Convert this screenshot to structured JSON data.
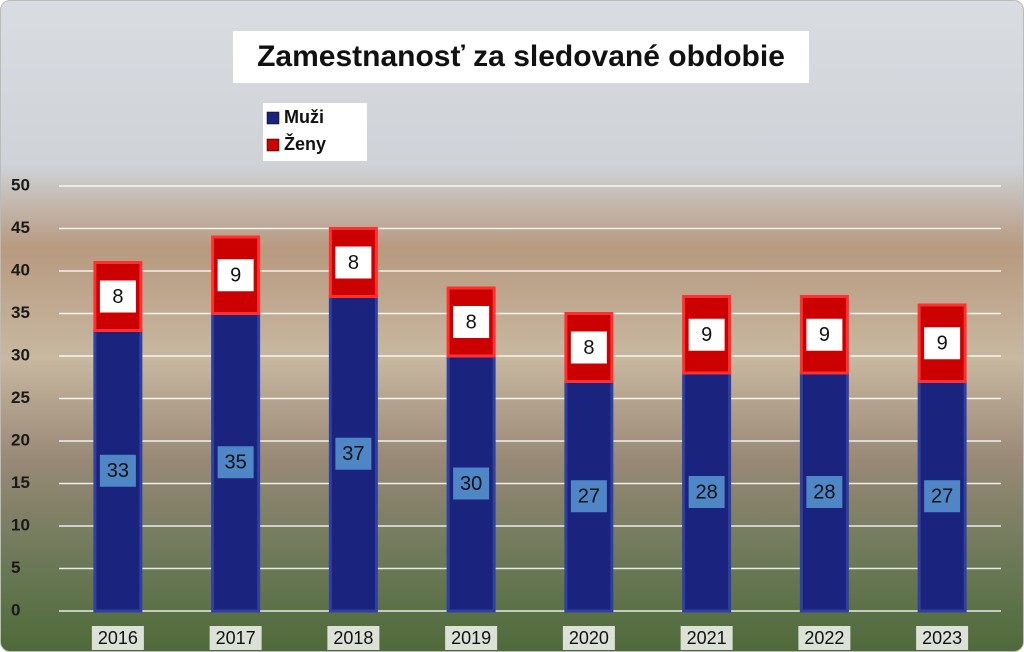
{
  "chart_data": {
    "type": "stacked-bar",
    "title": "Zamestnanosť za sledované obdobie",
    "categories": [
      "2016",
      "2017",
      "2018",
      "2019",
      "2020",
      "2021",
      "2022",
      "2023"
    ],
    "series": [
      {
        "name": "Muži",
        "color": "#1a237e",
        "values": [
          33,
          35,
          37,
          30,
          27,
          28,
          28,
          27
        ]
      },
      {
        "name": "Ženy",
        "color": "#cc0000",
        "values": [
          8,
          9,
          8,
          8,
          8,
          9,
          9,
          9
        ]
      }
    ],
    "ylim": [
      0,
      50
    ],
    "yticks": [
      0,
      5,
      10,
      15,
      20,
      25,
      30,
      35,
      40,
      45,
      50
    ],
    "grid": true,
    "legend": "top-left"
  }
}
